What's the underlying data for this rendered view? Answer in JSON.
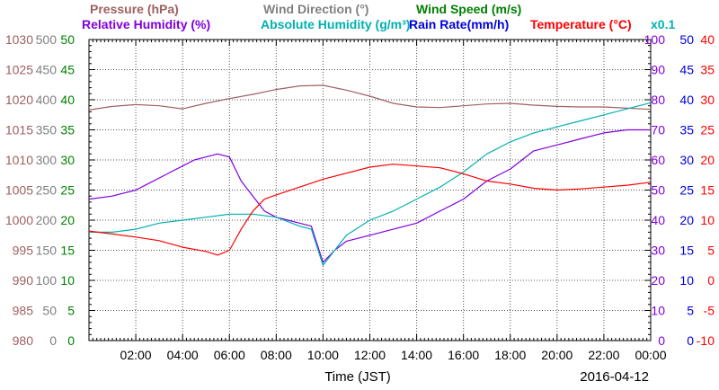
{
  "chart_data": {
    "type": "line",
    "date": "2016-04-12",
    "xlabel": "Time (JST)",
    "x_ticks": [
      "02:00",
      "04:00",
      "06:00",
      "08:00",
      "10:00",
      "12:00",
      "14:00",
      "16:00",
      "18:00",
      "20:00",
      "22:00",
      "00:00"
    ],
    "xlim": [
      0,
      24
    ],
    "grid": true,
    "legend": {
      "row1": [
        {
          "text": "Pressure (hPa)",
          "color": "#a06060"
        },
        {
          "text": "Wind Direction (°)",
          "color": "#808080"
        },
        {
          "text": "Wind Speed (m/s)",
          "color": "#008000"
        }
      ],
      "row2": [
        {
          "text": "Relative Humidity (%)",
          "color": "#8000e0"
        },
        {
          "text": "Absolute Humidity (g/m³)",
          "color": "#00b0b0"
        },
        {
          "text": "Rain Rate(mm/h)",
          "color": "#0000e0"
        },
        {
          "text": "Temperature (°C)",
          "color": "#ff0000"
        }
      ],
      "multiplier": {
        "text": "x0.1",
        "color": "#00b0b0"
      }
    },
    "axes": [
      {
        "name": "Pressure (hPa)",
        "side": "left",
        "color": "#a06060",
        "ticks": [
          "1030",
          "1025",
          "1020",
          "1015",
          "1010",
          "1005",
          "1000",
          "995",
          "990",
          "985",
          "980"
        ]
      },
      {
        "name": "Wind Direction (°)",
        "side": "left",
        "color": "#808080",
        "ticks": [
          "500",
          "450",
          "400",
          "350",
          "300",
          "250",
          "200",
          "150",
          "100",
          "50",
          "0"
        ]
      },
      {
        "name": "Wind Speed (m/s)",
        "side": "left",
        "color": "#008000",
        "ticks": [
          "50",
          "45",
          "40",
          "35",
          "30",
          "25",
          "20",
          "15",
          "10",
          "5",
          "0"
        ]
      },
      {
        "name": "Relative Humidity (%)",
        "side": "right",
        "color": "#8000e0",
        "ticks": [
          "100",
          "90",
          "80",
          "70",
          "60",
          "50",
          "40",
          "30",
          "20",
          "10",
          "0"
        ]
      },
      {
        "name": "Rain Rate(mm/h)",
        "side": "right",
        "color": "#0000e0",
        "ticks": [
          "50",
          "45",
          "40",
          "35",
          "30",
          "25",
          "20",
          "15",
          "10",
          "5",
          "0"
        ]
      },
      {
        "name": "Temperature (°C)",
        "side": "right",
        "color": "#ff0000",
        "ticks": [
          "40",
          "35",
          "30",
          "25",
          "20",
          "15",
          "10",
          "5",
          "0",
          "-5",
          "-10"
        ]
      }
    ],
    "series": [
      {
        "name": "Pressure (hPa)",
        "color": "#a06060",
        "ylim": [
          980,
          1030
        ],
        "x": [
          0,
          1,
          2,
          3,
          4,
          5,
          6,
          7,
          8,
          9,
          10,
          11,
          12,
          13,
          14,
          15,
          16,
          17,
          18,
          19,
          20,
          21,
          22,
          23,
          24
        ],
        "y": [
          1018.3,
          1018.9,
          1019.2,
          1019.0,
          1018.5,
          1019.4,
          1020.2,
          1020.9,
          1021.7,
          1022.3,
          1022.4,
          1021.6,
          1020.6,
          1019.4,
          1018.8,
          1018.7,
          1019.0,
          1019.3,
          1019.4,
          1019.1,
          1018.9,
          1018.8,
          1018.8,
          1018.6,
          1018.4
        ]
      },
      {
        "name": "Relative Humidity (%)",
        "color": "#8000e0",
        "ylim": [
          0,
          100
        ],
        "x": [
          0,
          1,
          1.5,
          2,
          2.5,
          3,
          3.5,
          4,
          4.5,
          5,
          5.5,
          6,
          6.5,
          7,
          7.5,
          8,
          8.5,
          9,
          9.5,
          10,
          10.5,
          11,
          12,
          13,
          14,
          15,
          16,
          17,
          18,
          19,
          20,
          21,
          22,
          23,
          24
        ],
        "y": [
          47,
          48,
          49,
          50,
          52,
          54,
          56,
          58,
          60,
          61,
          62,
          61,
          53,
          48,
          43,
          41,
          40,
          39,
          38,
          26,
          30,
          33,
          35,
          37,
          39,
          43,
          47,
          53,
          57,
          63,
          65,
          67,
          69,
          70,
          70
        ]
      },
      {
        "name": "Absolute Humidity (g/m³)",
        "color": "#00b0b0",
        "ylim": [
          0,
          100
        ],
        "x": [
          0,
          1,
          2,
          3,
          4,
          5,
          6,
          7,
          8,
          9,
          9.5,
          10,
          10.5,
          11,
          12,
          13,
          14,
          15,
          16,
          17,
          18,
          19,
          20,
          21,
          22,
          23,
          24
        ],
        "y": [
          36,
          36,
          37,
          39,
          40,
          41,
          42,
          42,
          41,
          38,
          37,
          25,
          30,
          35,
          40,
          43,
          47,
          51,
          56,
          62,
          66,
          69,
          71,
          73,
          75,
          77,
          79
        ]
      },
      {
        "name": "Temperature (°C)",
        "color": "#ff0000",
        "ylim": [
          -10,
          40
        ],
        "x": [
          0,
          1,
          2,
          3,
          4,
          5,
          5.5,
          6,
          6.5,
          7,
          7.5,
          8,
          9,
          10,
          11,
          12,
          13,
          14,
          15,
          16,
          17,
          18,
          19,
          20,
          21,
          22,
          23,
          24
        ],
        "y": [
          8.2,
          7.7,
          7.2,
          6.6,
          5.5,
          4.8,
          4.2,
          5.0,
          8.5,
          11.5,
          13.5,
          14.2,
          15.5,
          16.8,
          17.8,
          18.8,
          19.3,
          19.0,
          18.7,
          17.7,
          16.5,
          16.0,
          15.3,
          15.0,
          15.2,
          15.5,
          15.8,
          16.3
        ]
      }
    ]
  }
}
